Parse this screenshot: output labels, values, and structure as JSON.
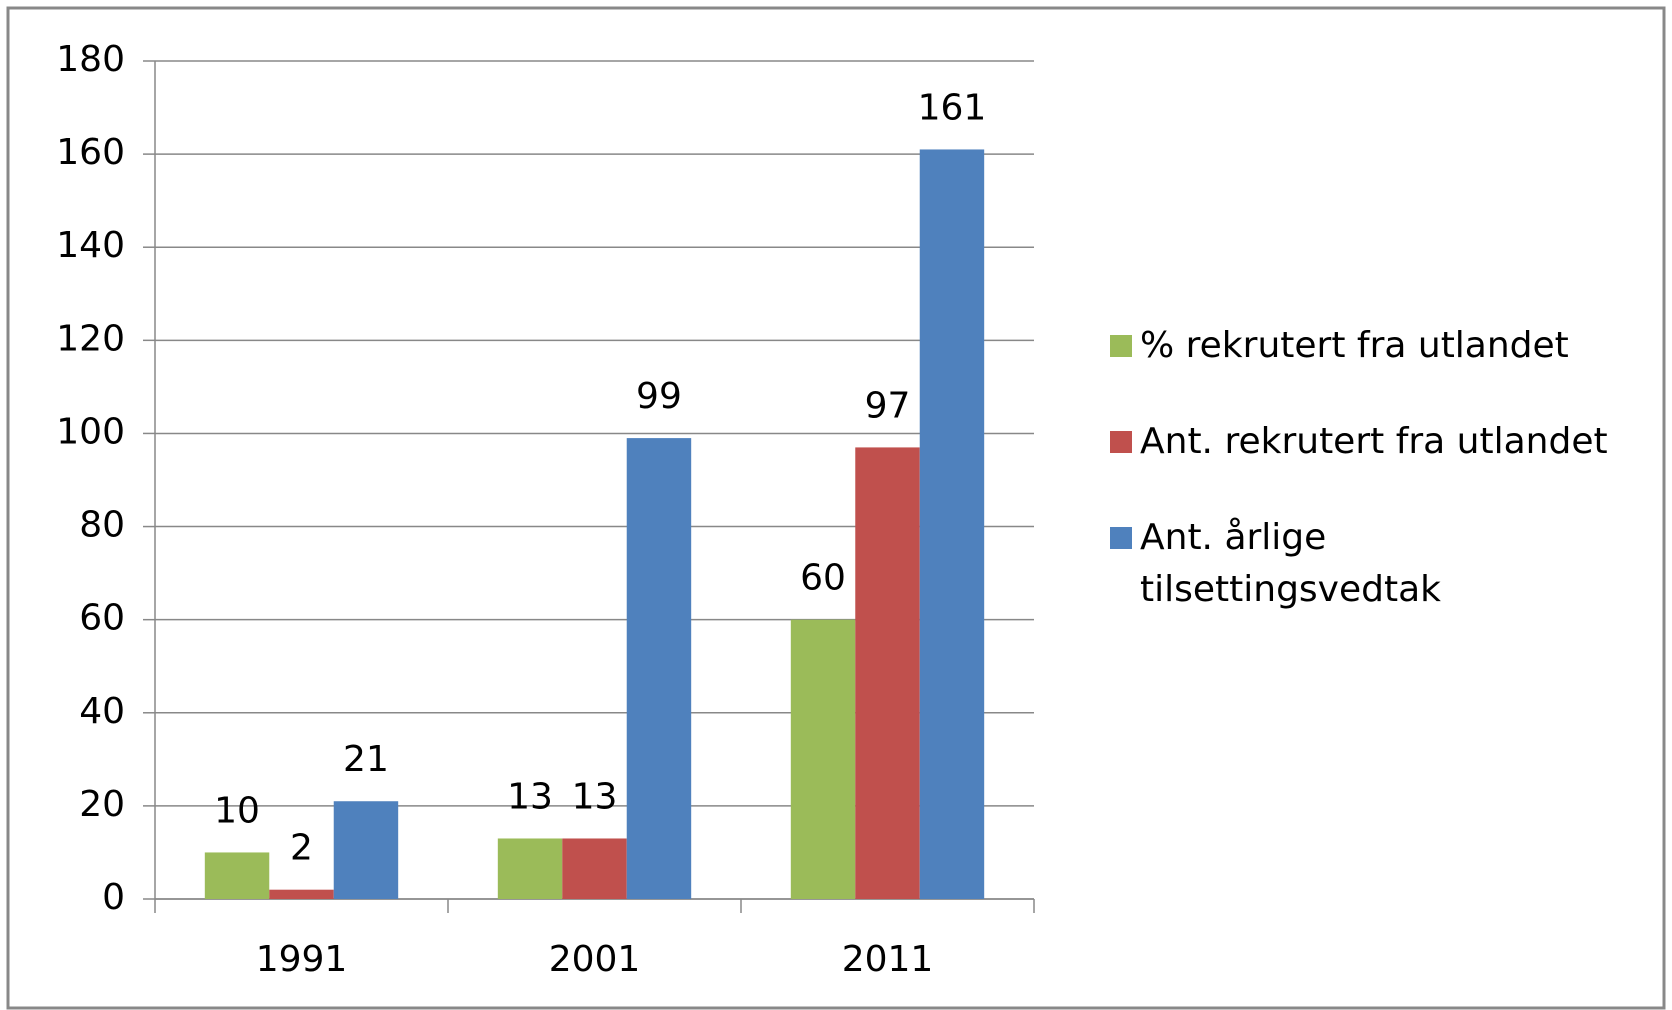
{
  "chart_data": {
    "type": "bar",
    "categories": [
      "1991",
      "2001",
      "2011"
    ],
    "series": [
      {
        "name": "% rekrutert fra utlandet",
        "color": "#9bbb59",
        "values": [
          10,
          13,
          60
        ]
      },
      {
        "name": "Ant. rekrutert fra utlandet",
        "color": "#c0504d",
        "values": [
          2,
          13,
          97
        ]
      },
      {
        "name": "Ant. årlige tilsettingsvedtak",
        "color": "#4f81bd",
        "values": [
          21,
          99,
          161
        ]
      }
    ],
    "ylim": [
      0,
      180
    ],
    "yticks": [
      0,
      20,
      40,
      60,
      80,
      100,
      120,
      140,
      160,
      180
    ],
    "grid": true,
    "legend": "right"
  }
}
